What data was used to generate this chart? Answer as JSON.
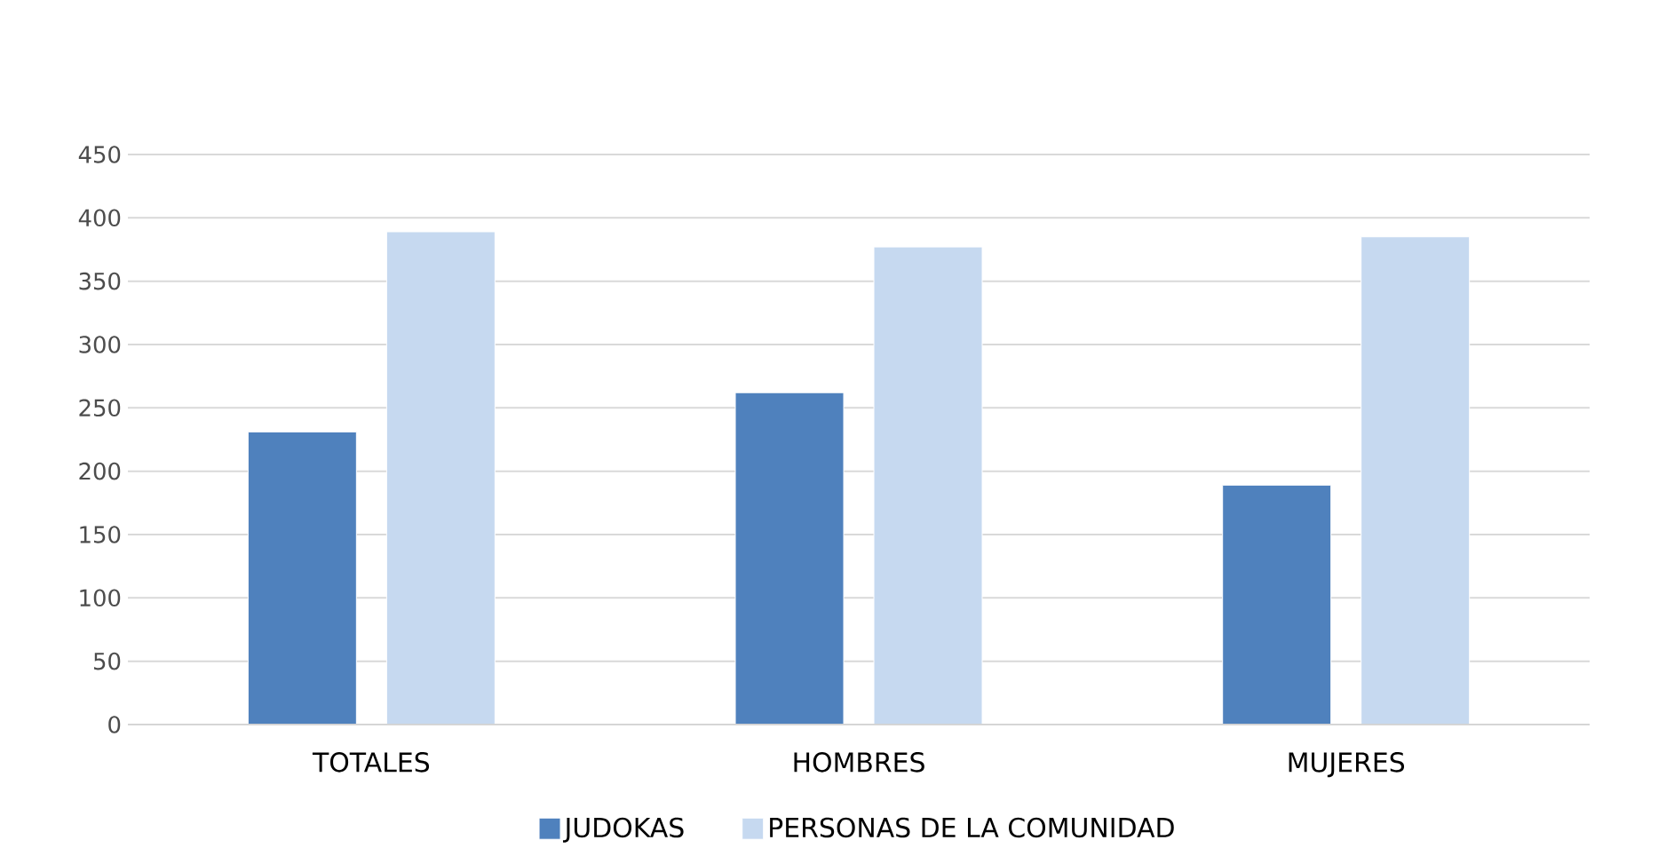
{
  "chart_data": {
    "type": "bar",
    "categories": [
      "TOTALES",
      "HOMBRES",
      "MUJERES"
    ],
    "series": [
      {
        "name": "JUDOKAS",
        "color": "#4f81bd",
        "values": [
          231,
          262,
          189
        ]
      },
      {
        "name": "PERSONAS DE LA COMUNIDAD",
        "color": "#c6d9f0",
        "values": [
          389,
          377,
          385
        ]
      }
    ],
    "ylim": [
      0,
      450
    ],
    "yticks": [
      0,
      50,
      100,
      150,
      200,
      250,
      300,
      350,
      400,
      450
    ],
    "grid": "y",
    "legend": "bottom"
  }
}
